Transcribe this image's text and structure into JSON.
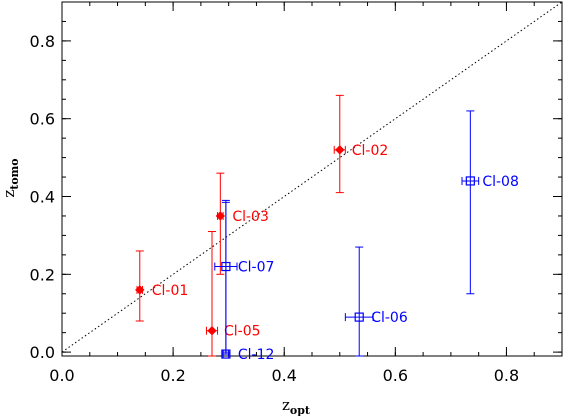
{
  "chart_data": {
    "type": "scatter",
    "title": "",
    "xlabel": {
      "main": "z",
      "sub": "opt"
    },
    "ylabel": {
      "main": "z",
      "sub": "tomo"
    },
    "xlim": [
      0.0,
      0.9
    ],
    "ylim": [
      -0.01,
      0.9
    ],
    "xticks": [
      0.0,
      0.2,
      0.4,
      0.6,
      0.8
    ],
    "xtick_labels": [
      "0.0",
      "0.2",
      "0.4",
      "0.6",
      "0.8"
    ],
    "yticks": [
      0.0,
      0.2,
      0.4,
      0.6,
      0.8
    ],
    "ytick_labels": [
      "0.0",
      "0.2",
      "0.4",
      "0.6",
      "0.8"
    ],
    "grid": false,
    "reference_line": {
      "style": "dotted",
      "from": [
        0.0,
        0.0
      ],
      "to": [
        0.9,
        0.9
      ]
    },
    "colors": {
      "red": "#ff0000",
      "blue": "#0000ff"
    },
    "points": [
      {
        "label": "Cl-01",
        "color": "red",
        "marker": "diamond",
        "x": 0.14,
        "y": 0.16,
        "xerr": [
          0.005,
          0.005
        ],
        "yerr": [
          0.08,
          0.1
        ],
        "label_pos": "right"
      },
      {
        "label": "Cl-02",
        "color": "red",
        "marker": "diamond",
        "x": 0.5,
        "y": 0.52,
        "xerr": [
          0.01,
          0.01
        ],
        "yerr": [
          0.11,
          0.14
        ],
        "label_pos": "right"
      },
      {
        "label": "Cl-03",
        "color": "red",
        "marker": "diamond",
        "x": 0.285,
        "y": 0.35,
        "xerr": [
          0.005,
          0.005
        ],
        "yerr": [
          0.15,
          0.11
        ],
        "label_pos": "right"
      },
      {
        "label": "Cl-05",
        "color": "red",
        "marker": "diamond",
        "x": 0.27,
        "y": 0.055,
        "xerr": [
          0.01,
          0.01
        ],
        "yerr": [
          0.065,
          0.255
        ],
        "label_pos": "right"
      },
      {
        "label": "Cl-06",
        "color": "blue",
        "marker": "square",
        "x": 0.535,
        "y": 0.09,
        "xerr": [
          0.025,
          0.025
        ],
        "yerr": [
          0.1,
          0.18
        ],
        "label_pos": "right"
      },
      {
        "label": "Cl-07",
        "color": "blue",
        "marker": "square",
        "x": 0.295,
        "y": 0.22,
        "xerr": [
          0.02,
          0.02
        ],
        "yerr": [
          0.22,
          0.17
        ],
        "label_pos": "right"
      },
      {
        "label": "Cl-08",
        "color": "blue",
        "marker": "square",
        "x": 0.735,
        "y": 0.44,
        "xerr": [
          0.015,
          0.015
        ],
        "yerr": [
          0.29,
          0.18
        ],
        "label_pos": "right"
      },
      {
        "label": "Cl-12",
        "color": "blue",
        "marker": "square",
        "x": 0.295,
        "y": -0.005,
        "xerr": [
          0.005,
          0.005
        ],
        "yerr": [
          0.0,
          0.39
        ],
        "label_pos": "right"
      }
    ]
  }
}
